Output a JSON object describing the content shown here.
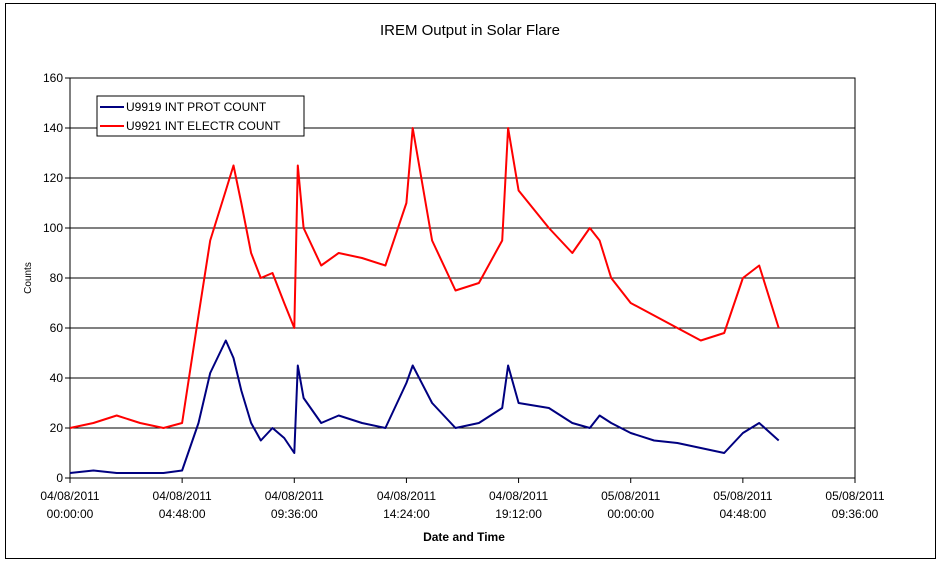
{
  "chart_data": {
    "type": "line",
    "title": "IREM Output in Solar Flare",
    "xlabel": "Date and Time",
    "ylabel": "Counts",
    "ylim": [
      0,
      160
    ],
    "yticks": [
      0,
      20,
      40,
      60,
      80,
      100,
      120,
      140,
      160
    ],
    "xlim": [
      "04/08/2011 00:00:00",
      "05/08/2011 09:36:00"
    ],
    "xtick_labels": [
      {
        "date": "04/08/2011",
        "time": "00:00:00"
      },
      {
        "date": "04/08/2011",
        "time": "04:48:00"
      },
      {
        "date": "04/08/2011",
        "time": "09:36:00"
      },
      {
        "date": "04/08/2011",
        "time": "14:24:00"
      },
      {
        "date": "04/08/2011",
        "time": "19:12:00"
      },
      {
        "date": "05/08/2011",
        "time": "00:00:00"
      },
      {
        "date": "05/08/2011",
        "time": "04:48:00"
      },
      {
        "date": "05/08/2011",
        "time": "09:36:00"
      }
    ],
    "grid": "horizontal",
    "legend_position": "top-left",
    "series": [
      {
        "name": "U9919 INT PROT COUNT",
        "color": "#000080",
        "x": [
          "04/08/2011 00:00:00",
          "04/08/2011 01:00:00",
          "04/08/2011 02:00:00",
          "04/08/2011 03:00:00",
          "04/08/2011 04:00:00",
          "04/08/2011 04:48:00",
          "04/08/2011 05:30:00",
          "04/08/2011 06:00:00",
          "04/08/2011 06:40:00",
          "04/08/2011 07:00:00",
          "04/08/2011 07:20:00",
          "04/08/2011 07:45:00",
          "04/08/2011 08:10:00",
          "04/08/2011 08:40:00",
          "04/08/2011 09:10:00",
          "04/08/2011 09:36:00",
          "04/08/2011 09:45:00",
          "04/08/2011 10:00:00",
          "04/08/2011 10:45:00",
          "04/08/2011 11:30:00",
          "04/08/2011 12:30:00",
          "04/08/2011 13:30:00",
          "04/08/2011 14:24:00",
          "04/08/2011 14:40:00",
          "04/08/2011 15:30:00",
          "04/08/2011 16:30:00",
          "04/08/2011 17:30:00",
          "04/08/2011 18:30:00",
          "04/08/2011 18:45:00",
          "04/08/2011 19:12:00",
          "04/08/2011 20:30:00",
          "04/08/2011 21:30:00",
          "04/08/2011 22:15:00",
          "04/08/2011 22:40:00",
          "04/08/2011 23:10:00",
          "05/08/2011 00:00:00",
          "05/08/2011 01:00:00",
          "05/08/2011 02:00:00",
          "05/08/2011 03:00:00",
          "05/08/2011 04:00:00",
          "05/08/2011 04:48:00",
          "05/08/2011 05:30:00",
          "05/08/2011 06:20:00"
        ],
        "y": [
          2,
          3,
          2,
          2,
          2,
          3,
          22,
          42,
          55,
          48,
          35,
          22,
          15,
          20,
          16,
          10,
          45,
          32,
          22,
          25,
          22,
          20,
          38,
          45,
          30,
          20,
          22,
          28,
          45,
          30,
          28,
          22,
          20,
          25,
          22,
          18,
          15,
          14,
          12,
          10,
          18,
          22,
          15
        ]
      },
      {
        "name": "U9921 INT ELECTR COUNT",
        "color": "#ff0000",
        "x": [
          "04/08/2011 00:00:00",
          "04/08/2011 01:00:00",
          "04/08/2011 02:00:00",
          "04/08/2011 03:00:00",
          "04/08/2011 04:00:00",
          "04/08/2011 04:48:00",
          "04/08/2011 05:30:00",
          "04/08/2011 06:00:00",
          "04/08/2011 06:40:00",
          "04/08/2011 07:00:00",
          "04/08/2011 07:20:00",
          "04/08/2011 07:45:00",
          "04/08/2011 08:10:00",
          "04/08/2011 08:40:00",
          "04/08/2011 09:10:00",
          "04/08/2011 09:36:00",
          "04/08/2011 09:45:00",
          "04/08/2011 10:00:00",
          "04/08/2011 10:45:00",
          "04/08/2011 11:30:00",
          "04/08/2011 12:30:00",
          "04/08/2011 13:30:00",
          "04/08/2011 14:24:00",
          "04/08/2011 14:40:00",
          "04/08/2011 15:30:00",
          "04/08/2011 16:30:00",
          "04/08/2011 17:30:00",
          "04/08/2011 18:30:00",
          "04/08/2011 18:45:00",
          "04/08/2011 19:12:00",
          "04/08/2011 20:30:00",
          "04/08/2011 21:30:00",
          "04/08/2011 22:15:00",
          "04/08/2011 22:40:00",
          "04/08/2011 23:10:00",
          "05/08/2011 00:00:00",
          "05/08/2011 01:00:00",
          "05/08/2011 02:00:00",
          "05/08/2011 03:00:00",
          "05/08/2011 04:00:00",
          "05/08/2011 04:48:00",
          "05/08/2011 05:30:00",
          "05/08/2011 06:20:00"
        ],
        "y": [
          20,
          22,
          25,
          22,
          20,
          22,
          65,
          95,
          115,
          125,
          110,
          90,
          80,
          82,
          70,
          60,
          125,
          100,
          85,
          90,
          88,
          85,
          110,
          140,
          95,
          75,
          78,
          95,
          140,
          115,
          100,
          90,
          100,
          95,
          80,
          70,
          65,
          60,
          55,
          58,
          80,
          85,
          60
        ]
      }
    ]
  }
}
